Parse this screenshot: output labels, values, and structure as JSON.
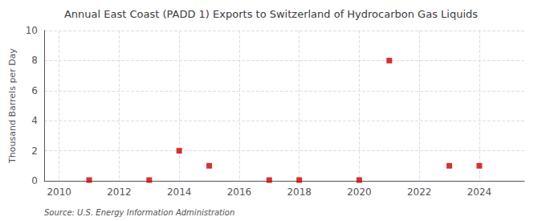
{
  "chart_data": {
    "type": "scatter",
    "title": "Annual East Coast (PADD 1) Exports to Switzerland of Hydrocarbon Gas Liquids",
    "ylabel": "Thousand Barrels per Day",
    "annotation": "Source: U.S. Energy Information Administration",
    "x": [
      2011,
      2013,
      2014,
      2015,
      2017,
      2018,
      2020,
      2021,
      2023,
      2024
    ],
    "values": [
      0.05,
      0.05,
      2.0,
      1.0,
      0.05,
      0.05,
      0.05,
      8.0,
      1.0,
      1.0
    ],
    "color": "#cc0000",
    "marker": "square",
    "xlim": [
      2009.5,
      2025.5
    ],
    "xticks": [
      2010,
      2012,
      2014,
      2016,
      2018,
      2020,
      2022,
      2024
    ],
    "ylim": [
      0,
      10
    ],
    "yticks": [
      0,
      2,
      4,
      6,
      8,
      10
    ],
    "grid": true
  }
}
